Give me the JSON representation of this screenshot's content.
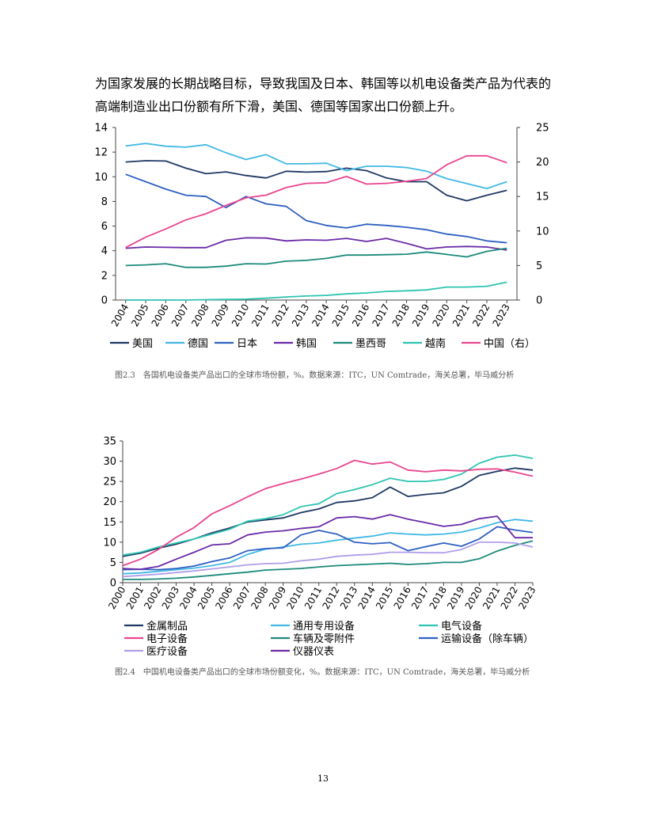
{
  "paragraph": {
    "line1": "为国家发展的长期战略目标，导致我国及日本、韩国等以机电设备类产品为代表的",
    "line2": "高端制造业出口份额有所下滑，美国、德国等国家出口份额上升。"
  },
  "figure1_caption": "图2.3　各国机电设备类产品出口的全球市场份额，%。数据来源：ITC，UN Comtrade，海关总署，毕马威分析",
  "figure2_caption": "图2.4　中国机电设备类产品出口的全球市场份额变化，%。数据来源：ITC，UN Comtrade，海关总署，毕马威分析",
  "page_number": "13",
  "chart_data": [
    {
      "type": "line",
      "title": "",
      "categories": [
        "2004",
        "2005",
        "2006",
        "2007",
        "2008",
        "2009",
        "2010",
        "2011",
        "2012",
        "2013",
        "2014",
        "2015",
        "2016",
        "2017",
        "2018",
        "2019",
        "2020",
        "2021",
        "2022",
        "2023"
      ],
      "ylim_left": [
        0,
        14
      ],
      "yticks_left": [
        "0",
        "2",
        "4",
        "6",
        "8",
        "10",
        "12",
        "14"
      ],
      "ylim_right": [
        0,
        25
      ],
      "yticks_right": [
        "0",
        "5",
        "10",
        "15",
        "20",
        "25"
      ],
      "legend_position": "bottom",
      "series": [
        {
          "name": "美国",
          "axis": "left",
          "color": "#1f3864",
          "values": [
            11.2,
            11.3,
            11.28,
            10.7,
            10.25,
            10.4,
            10.1,
            9.9,
            10.45,
            10.38,
            10.42,
            10.7,
            10.5,
            9.9,
            9.6,
            9.6,
            8.5,
            8.05,
            8.5,
            8.9
          ]
        },
        {
          "name": "德国",
          "axis": "left",
          "color": "#41b8e4",
          "values": [
            12.5,
            12.7,
            12.48,
            12.4,
            12.6,
            11.95,
            11.4,
            11.8,
            11.05,
            11.05,
            11.1,
            10.5,
            10.85,
            10.85,
            10.75,
            10.45,
            9.85,
            9.45,
            9.05,
            9.6
          ]
        },
        {
          "name": "日本",
          "axis": "left",
          "color": "#2e5fc1",
          "values": [
            10.2,
            9.6,
            9.0,
            8.5,
            8.4,
            7.5,
            8.4,
            7.8,
            7.6,
            6.45,
            6.05,
            5.85,
            6.15,
            6.05,
            5.9,
            5.7,
            5.35,
            5.15,
            4.8,
            4.65
          ]
        },
        {
          "name": "韩国",
          "axis": "left",
          "color": "#6a2aa8",
          "values": [
            4.2,
            4.3,
            4.28,
            4.25,
            4.25,
            4.85,
            5.05,
            5.03,
            4.8,
            4.88,
            4.85,
            5.0,
            4.75,
            5.0,
            4.6,
            4.15,
            4.3,
            4.35,
            4.3,
            4.05
          ]
        },
        {
          "name": "墨西哥",
          "axis": "left",
          "color": "#1b8a7a",
          "values": [
            2.8,
            2.85,
            2.95,
            2.65,
            2.65,
            2.75,
            2.95,
            2.92,
            3.15,
            3.22,
            3.38,
            3.65,
            3.65,
            3.68,
            3.72,
            3.9,
            3.7,
            3.5,
            3.95,
            4.2
          ]
        },
        {
          "name": "越南",
          "axis": "left",
          "color": "#2ec4b0",
          "values": [
            0.0,
            0.0,
            0.0,
            0.0,
            0.03,
            0.05,
            0.07,
            0.15,
            0.25,
            0.33,
            0.38,
            0.5,
            0.58,
            0.7,
            0.75,
            0.82,
            1.05,
            1.05,
            1.12,
            1.45
          ]
        },
        {
          "name": "中国（右）",
          "axis": "right",
          "color": "#e8458f",
          "values": [
            7.6,
            9.1,
            10.3,
            11.6,
            12.5,
            13.7,
            14.8,
            15.2,
            16.3,
            16.9,
            17.0,
            17.9,
            16.8,
            16.9,
            17.2,
            17.6,
            19.6,
            20.9,
            20.9,
            19.9
          ]
        }
      ]
    },
    {
      "type": "line",
      "title": "",
      "categories": [
        "2000",
        "2001",
        "2002",
        "2003",
        "2004",
        "2005",
        "2006",
        "2007",
        "2008",
        "2009",
        "2010",
        "2011",
        "2012",
        "2013",
        "2014",
        "2015",
        "2016",
        "2017",
        "2018",
        "2019",
        "2020",
        "2021",
        "2022",
        "2023"
      ],
      "ylim": [
        0,
        35
      ],
      "yticks": [
        "0",
        "5",
        "10",
        "15",
        "20",
        "25",
        "30",
        "35"
      ],
      "legend_position": "bottom",
      "series": [
        {
          "name": "金属制品",
          "color": "#1f3864",
          "values": [
            6.5,
            7.3,
            8.5,
            9.5,
            10.8,
            12.3,
            13.5,
            15.0,
            15.5,
            16.0,
            17.3,
            18.2,
            19.8,
            20.2,
            21.0,
            23.6,
            21.3,
            21.8,
            22.2,
            23.8,
            26.5,
            27.5,
            28.3,
            27.8
          ]
        },
        {
          "name": "通用专用设备",
          "color": "#41b8e4",
          "values": [
            2.2,
            2.4,
            2.8,
            3.2,
            3.6,
            4.2,
            5.0,
            7.0,
            8.3,
            8.8,
            9.5,
            9.8,
            10.5,
            11.0,
            11.5,
            12.3,
            12.0,
            11.8,
            12.0,
            12.5,
            13.5,
            14.8,
            15.6,
            15.2
          ]
        },
        {
          "name": "电气设备",
          "color": "#2ec4b0",
          "values": [
            6.8,
            7.5,
            8.8,
            9.8,
            10.8,
            12.0,
            13.2,
            15.2,
            15.8,
            16.8,
            18.8,
            19.5,
            22.0,
            23.0,
            24.2,
            25.8,
            25.0,
            25.0,
            25.5,
            26.8,
            29.5,
            31.0,
            31.5,
            30.7
          ]
        },
        {
          "name": "电子设备",
          "color": "#e8458f",
          "values": [
            4.2,
            5.8,
            8.2,
            11.2,
            13.6,
            17.0,
            19.0,
            21.2,
            23.2,
            24.5,
            25.6,
            26.8,
            28.2,
            30.2,
            29.3,
            29.8,
            27.8,
            27.4,
            27.8,
            27.6,
            28.0,
            28.1,
            27.3,
            26.3
          ]
        },
        {
          "name": "车辆及零附件",
          "color": "#1b8a7a",
          "values": [
            0.8,
            0.8,
            0.9,
            1.1,
            1.4,
            1.8,
            2.2,
            2.6,
            3.1,
            3.3,
            3.5,
            3.9,
            4.2,
            4.4,
            4.6,
            4.8,
            4.5,
            4.7,
            5.0,
            5.0,
            5.9,
            7.8,
            9.2,
            10.3
          ]
        },
        {
          "name": "运输设备（除车辆）",
          "color": "#2e5fc1",
          "values": [
            3.2,
            3.3,
            3.2,
            3.5,
            4.1,
            5.2,
            6.1,
            7.9,
            8.4,
            8.6,
            11.8,
            12.9,
            12.0,
            10.0,
            9.6,
            9.9,
            7.9,
            8.9,
            9.8,
            9.0,
            10.8,
            13.8,
            13.0,
            12.4
          ]
        },
        {
          "name": "医疗设备",
          "color": "#b09ee8",
          "values": [
            1.5,
            1.8,
            2.1,
            2.5,
            2.9,
            3.4,
            3.9,
            4.4,
            4.7,
            4.8,
            5.4,
            5.8,
            6.5,
            6.8,
            7.0,
            7.5,
            7.5,
            7.4,
            7.4,
            8.2,
            10.0,
            10.0,
            9.8,
            8.8
          ]
        },
        {
          "name": "仪器仪表",
          "color": "#6a2aa8",
          "values": [
            3.5,
            3.3,
            4.0,
            5.8,
            7.5,
            9.3,
            9.6,
            11.8,
            12.5,
            12.8,
            13.4,
            13.8,
            16.0,
            16.3,
            15.7,
            16.8,
            15.7,
            14.8,
            13.9,
            14.4,
            15.8,
            16.4,
            11.1,
            11.1
          ]
        }
      ]
    }
  ]
}
